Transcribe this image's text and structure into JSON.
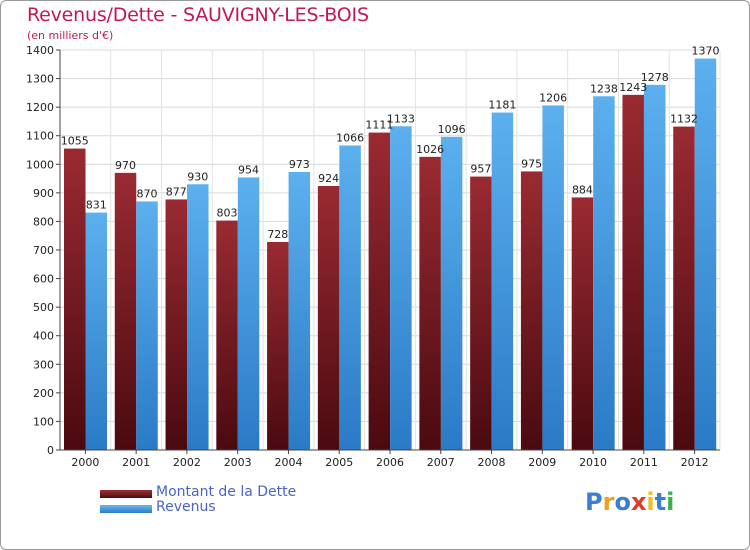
{
  "chart_data": {
    "type": "bar",
    "title": "Revenus/Dette - SAUVIGNY-LES-BOIS",
    "subtitle": "(en milliers d'€)",
    "categories": [
      "2000",
      "2001",
      "2002",
      "2003",
      "2004",
      "2005",
      "2006",
      "2007",
      "2008",
      "2009",
      "2010",
      "2011",
      "2012"
    ],
    "series": [
      {
        "name": "Montant de la Dette",
        "color": "#7a1c22",
        "values": [
          1055,
          970,
          877,
          803,
          728,
          924,
          1111,
          1026,
          957,
          975,
          884,
          1243,
          1132
        ],
        "labels": [
          "1055",
          "970",
          "877",
          "803",
          "728",
          "924",
          "1111",
          "1026",
          "957",
          "975",
          "884",
          "1243",
          "1132"
        ]
      },
      {
        "name": "Revenus",
        "color": "#3a95e0",
        "values": [
          831,
          870,
          930,
          954,
          973,
          1066,
          1133,
          1096,
          1181,
          1206,
          1238,
          1278,
          1370
        ],
        "labels": [
          "831",
          "870",
          "930",
          "954",
          "973",
          "1066",
          "1133",
          "1096",
          "1181",
          "1206",
          "1238",
          "1278",
          "1370"
        ]
      }
    ],
    "ylim": [
      0,
      1400
    ],
    "yticks": [
      "0",
      "100",
      "200",
      "300",
      "400",
      "500",
      "600",
      "700",
      "800",
      "900",
      "1000",
      "1100",
      "1200",
      "1300",
      "1400"
    ],
    "grid": true,
    "legend_position": "bottom-left"
  },
  "logo": {
    "letters": [
      "P",
      "r",
      "o",
      "x",
      "i",
      "t",
      "i"
    ],
    "colors": [
      "#3a7fd0",
      "#f0a020",
      "#3a7fd0",
      "#e03a2a",
      "#f0c020",
      "#3a7fd0",
      "#3ab04a"
    ]
  }
}
